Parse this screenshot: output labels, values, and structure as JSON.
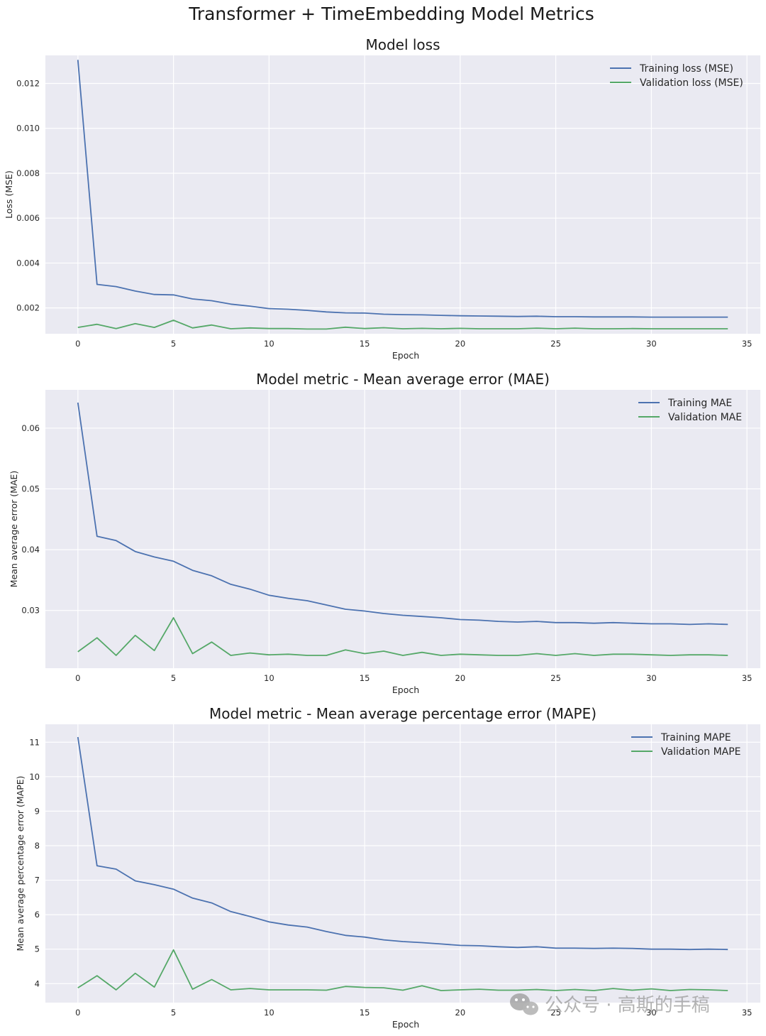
{
  "figure_title": "Transformer + TimeEmbedding Model Metrics",
  "watermark": "公众号 · 高斯的手稿",
  "colors": {
    "training": "#4c72b0",
    "validation": "#55a868",
    "axes_bg": "#eaeaf2",
    "grid": "#ffffff"
  },
  "chart_data": [
    {
      "type": "line",
      "title": "Model loss",
      "xlabel": "Epoch",
      "ylabel": "Loss (MSE)",
      "xlim": [
        -1.7,
        35.7
      ],
      "ylim": [
        0.00085,
        0.01325
      ],
      "xticks": [
        0,
        5,
        10,
        15,
        20,
        25,
        30,
        35
      ],
      "yticks": [
        0.002,
        0.004,
        0.006,
        0.008,
        0.01,
        0.012
      ],
      "ytick_labels": [
        "0.002",
        "0.004",
        "0.006",
        "0.008",
        "0.010",
        "0.012"
      ],
      "grid": true,
      "legend_position": "top-right",
      "x": [
        0,
        1,
        2,
        3,
        4,
        5,
        6,
        7,
        8,
        9,
        10,
        11,
        12,
        13,
        14,
        15,
        16,
        17,
        18,
        19,
        20,
        21,
        22,
        23,
        24,
        25,
        26,
        27,
        28,
        29,
        30,
        31,
        32,
        33,
        34
      ],
      "series": [
        {
          "name": "Training loss (MSE)",
          "values": [
            0.01305,
            0.00305,
            0.00295,
            0.00275,
            0.0026,
            0.00258,
            0.0024,
            0.00232,
            0.00217,
            0.00208,
            0.00197,
            0.00194,
            0.00189,
            0.00182,
            0.00178,
            0.00177,
            0.00172,
            0.0017,
            0.00169,
            0.00167,
            0.00165,
            0.00164,
            0.00163,
            0.00162,
            0.00163,
            0.00161,
            0.00161,
            0.0016,
            0.0016,
            0.0016,
            0.00159,
            0.00159,
            0.00159,
            0.00159,
            0.00159
          ]
        },
        {
          "name": "Validation loss (MSE)",
          "values": [
            0.00113,
            0.00127,
            0.00108,
            0.0013,
            0.00113,
            0.00145,
            0.00111,
            0.00124,
            0.00107,
            0.00111,
            0.00108,
            0.00108,
            0.00106,
            0.00106,
            0.00114,
            0.00108,
            0.00112,
            0.00107,
            0.00109,
            0.00107,
            0.00109,
            0.00107,
            0.00107,
            0.00107,
            0.0011,
            0.00107,
            0.0011,
            0.00107,
            0.00107,
            0.00108,
            0.00107,
            0.00107,
            0.00107,
            0.00107,
            0.00107
          ]
        }
      ]
    },
    {
      "type": "line",
      "title": "Model metric - Mean average error (MAE)",
      "xlabel": "Epoch",
      "ylabel": "Mean average error (MAE)",
      "xlim": [
        -1.7,
        35.7
      ],
      "ylim": [
        0.0205,
        0.0663
      ],
      "xticks": [
        0,
        5,
        10,
        15,
        20,
        25,
        30,
        35
      ],
      "yticks": [
        0.03,
        0.04,
        0.05,
        0.06
      ],
      "ytick_labels": [
        "0.03",
        "0.04",
        "0.05",
        "0.06"
      ],
      "grid": true,
      "legend_position": "top-right",
      "x": [
        0,
        1,
        2,
        3,
        4,
        5,
        6,
        7,
        8,
        9,
        10,
        11,
        12,
        13,
        14,
        15,
        16,
        17,
        18,
        19,
        20,
        21,
        22,
        23,
        24,
        25,
        26,
        27,
        28,
        29,
        30,
        31,
        32,
        33,
        34
      ],
      "series": [
        {
          "name": "Training MAE",
          "values": [
            0.0642,
            0.0422,
            0.0415,
            0.0397,
            0.0388,
            0.0381,
            0.0366,
            0.0357,
            0.0343,
            0.0335,
            0.0325,
            0.032,
            0.0316,
            0.0309,
            0.0302,
            0.0299,
            0.0295,
            0.0292,
            0.029,
            0.0288,
            0.0285,
            0.0284,
            0.0282,
            0.0281,
            0.0282,
            0.028,
            0.028,
            0.0279,
            0.028,
            0.0279,
            0.0278,
            0.0278,
            0.0277,
            0.0278,
            0.0277
          ]
        },
        {
          "name": "Validation MAE",
          "values": [
            0.0232,
            0.0255,
            0.0226,
            0.0259,
            0.0234,
            0.0288,
            0.0229,
            0.0248,
            0.0226,
            0.023,
            0.0227,
            0.0228,
            0.0226,
            0.0226,
            0.0235,
            0.0229,
            0.0233,
            0.0226,
            0.0231,
            0.0226,
            0.0228,
            0.0227,
            0.0226,
            0.0226,
            0.0229,
            0.0226,
            0.0229,
            0.0226,
            0.0228,
            0.0228,
            0.0227,
            0.0226,
            0.0227,
            0.0227,
            0.0226
          ]
        }
      ]
    },
    {
      "type": "line",
      "title": "Model metric - Mean average percentage error (MAPE)",
      "xlabel": "Epoch",
      "ylabel": "Mean average percentage error (MAPE)",
      "xlim": [
        -1.7,
        35.7
      ],
      "ylim": [
        3.45,
        11.52
      ],
      "xticks": [
        0,
        5,
        10,
        15,
        20,
        25,
        30,
        35
      ],
      "yticks": [
        4,
        5,
        6,
        7,
        8,
        9,
        10,
        11
      ],
      "ytick_labels": [
        "4",
        "5",
        "6",
        "7",
        "8",
        "9",
        "10",
        "11"
      ],
      "grid": true,
      "legend_position": "top-right",
      "x": [
        0,
        1,
        2,
        3,
        4,
        5,
        6,
        7,
        8,
        9,
        10,
        11,
        12,
        13,
        14,
        15,
        16,
        17,
        18,
        19,
        20,
        21,
        22,
        23,
        24,
        25,
        26,
        27,
        28,
        29,
        30,
        31,
        32,
        33,
        34
      ],
      "series": [
        {
          "name": "Training MAPE",
          "values": [
            11.15,
            7.42,
            7.32,
            6.98,
            6.87,
            6.74,
            6.48,
            6.34,
            6.09,
            5.95,
            5.79,
            5.7,
            5.64,
            5.51,
            5.4,
            5.35,
            5.27,
            5.22,
            5.19,
            5.15,
            5.11,
            5.1,
            5.07,
            5.05,
            5.07,
            5.03,
            5.03,
            5.02,
            5.03,
            5.02,
            5.0,
            5.0,
            4.99,
            5.0,
            4.99
          ]
        },
        {
          "name": "Validation MAPE",
          "values": [
            3.88,
            4.23,
            3.82,
            4.3,
            3.9,
            4.98,
            3.84,
            4.12,
            3.82,
            3.86,
            3.82,
            3.82,
            3.82,
            3.81,
            3.92,
            3.89,
            3.88,
            3.81,
            3.94,
            3.8,
            3.82,
            3.84,
            3.81,
            3.81,
            3.83,
            3.8,
            3.83,
            3.8,
            3.86,
            3.81,
            3.85,
            3.8,
            3.83,
            3.82,
            3.8
          ]
        }
      ]
    }
  ]
}
